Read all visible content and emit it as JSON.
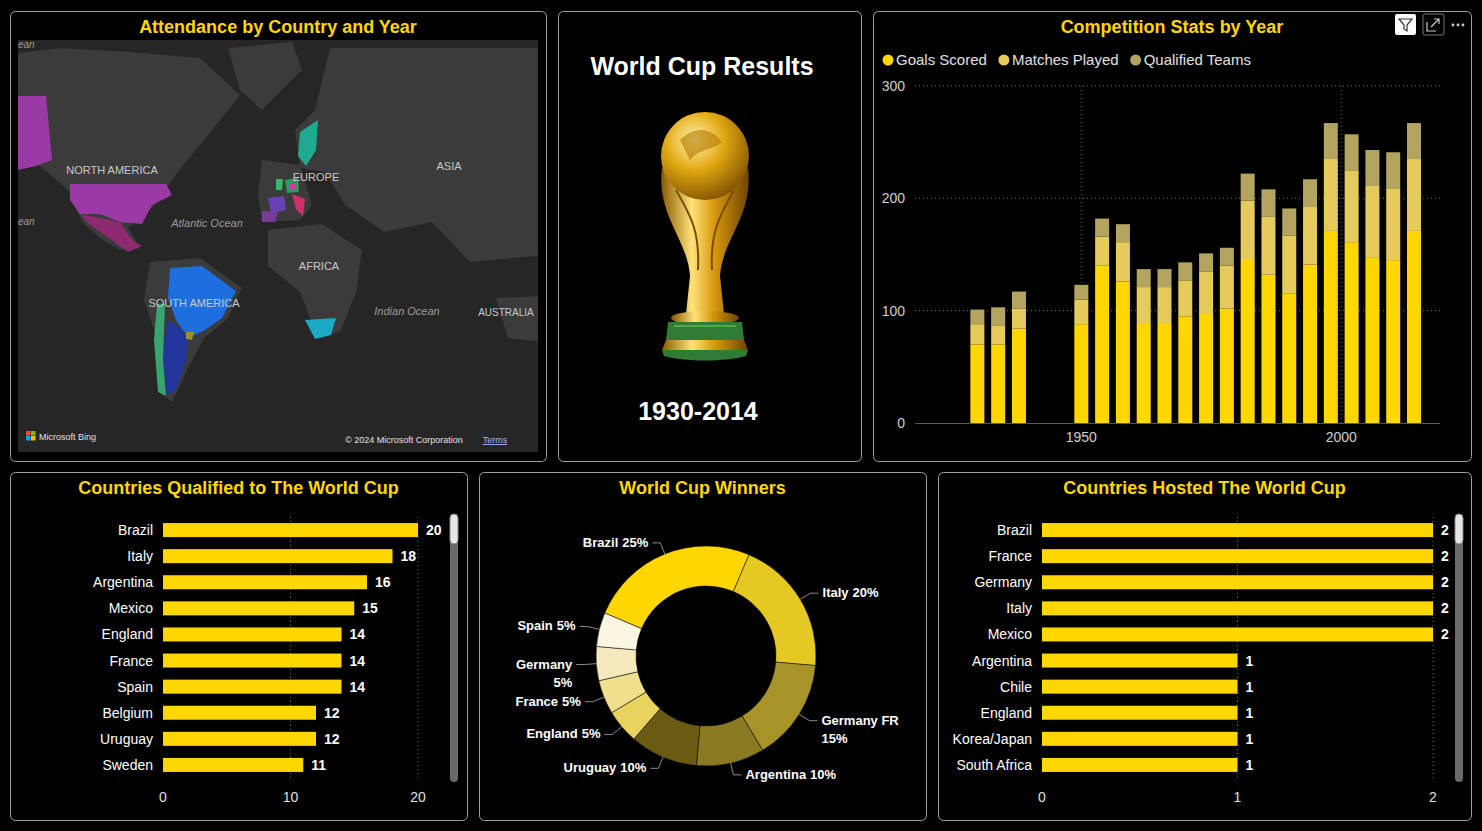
{
  "chart_data": [
    {
      "type": "map",
      "title": "Attendance by Country and Year",
      "annotations": [
        "ean",
        "NORTH AMERICA",
        "ASIA",
        "EUROPE",
        "Atlantic Ocean",
        "ean",
        "AFRICA",
        "SOUTH AMERICA",
        "Indian Ocean",
        "AUSTRALIA",
        "Microsoft Bing",
        "© 2024 Microsoft Corporation",
        "Terms"
      ]
    },
    {
      "type": "card",
      "title": "World Cup Results",
      "subtitle": "1930-2014"
    },
    {
      "type": "bar",
      "title": "Competition Stats by Year",
      "stacked": true,
      "x": [
        1930,
        1934,
        1938,
        1950,
        1954,
        1958,
        1962,
        1966,
        1970,
        1974,
        1978,
        1982,
        1986,
        1990,
        1994,
        1998,
        2002,
        2006,
        2010,
        2014
      ],
      "series": [
        {
          "name": "Goals Scored",
          "color": "#FFD700",
          "values": [
            70,
            70,
            84,
            88,
            140,
            126,
            89,
            89,
            95,
            97,
            102,
            146,
            132,
            115,
            141,
            171,
            161,
            147,
            145,
            171
          ]
        },
        {
          "name": "Matches Played",
          "color": "#E5CB5C",
          "values": [
            18,
            17,
            18,
            22,
            26,
            35,
            32,
            32,
            32,
            38,
            38,
            52,
            52,
            52,
            52,
            64,
            64,
            64,
            64,
            64
          ]
        },
        {
          "name": "Qualified Teams",
          "color": "#B3A45F",
          "values": [
            13,
            16,
            15,
            13,
            16,
            16,
            16,
            16,
            16,
            16,
            16,
            24,
            24,
            24,
            24,
            32,
            32,
            32,
            32,
            32
          ]
        }
      ],
      "xlim": [
        1918,
        2019
      ],
      "xticks": [
        1950,
        2000
      ],
      "ylim": [
        0,
        300
      ],
      "yticks": [
        0,
        100,
        200,
        300
      ],
      "grid": true,
      "legend": "top-left"
    },
    {
      "type": "bar",
      "orientation": "horizontal",
      "title": "Countries Qualified to The World Cup",
      "categories": [
        "Brazil",
        "Italy",
        "Argentina",
        "Mexico",
        "England",
        "France",
        "Spain",
        "Belgium",
        "Uruguay",
        "Sweden"
      ],
      "values": [
        20,
        18,
        16,
        15,
        14,
        14,
        14,
        12,
        12,
        11
      ],
      "color": "#FFD700",
      "xlim": [
        0,
        20
      ],
      "xticks": [
        0,
        10,
        20
      ],
      "grid": true,
      "data_labels": true
    },
    {
      "type": "donut",
      "title": "World Cup Winners",
      "categories": [
        "Brazil",
        "Italy",
        "Germany FR",
        "Argentina",
        "Uruguay",
        "England",
        "France",
        "Germany",
        "Spain"
      ],
      "values": [
        25,
        20,
        15,
        10,
        10,
        5,
        5,
        5,
        5
      ],
      "value_labels": [
        "25%",
        "20%",
        "15%",
        "10%",
        "10%",
        "5%",
        "5%",
        "5%",
        "5%"
      ],
      "colors": [
        "#FFD700",
        "#E6C823",
        "#A89426",
        "#8A7A22",
        "#6B5B12",
        "#E9D25E",
        "#F0E08E",
        "#F3E9BC",
        "#FBF6E2"
      ],
      "data_labels": true
    },
    {
      "type": "bar",
      "orientation": "horizontal",
      "title": "Countries Hosted The World Cup",
      "categories": [
        "Brazil",
        "France",
        "Germany",
        "Italy",
        "Mexico",
        "Argentina",
        "Chile",
        "England",
        "Korea/Japan",
        "South Africa"
      ],
      "values": [
        2,
        2,
        2,
        2,
        2,
        1,
        1,
        1,
        1,
        1
      ],
      "color": "#FFD700",
      "xlim": [
        0,
        2
      ],
      "xticks": [
        0,
        1,
        2
      ],
      "grid": true,
      "data_labels": true
    }
  ]
}
